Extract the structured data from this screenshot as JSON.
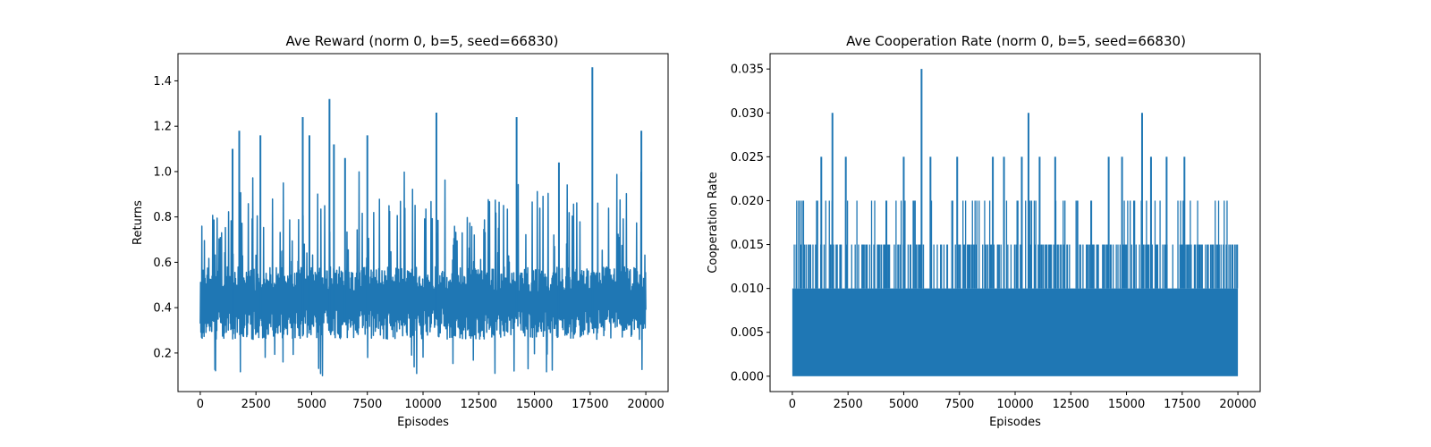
{
  "chart_data": [
    {
      "type": "line",
      "title": "Ave Reward (norm 0, b=5, seed=66830)",
      "xlabel": "Episodes",
      "ylabel": "Returns",
      "xlim": [
        -1000,
        21000
      ],
      "ylim": [
        0.03,
        1.52
      ],
      "xticks": [
        0,
        2500,
        5000,
        7500,
        10000,
        12500,
        15000,
        17500,
        20000
      ],
      "xtick_labels": [
        "0",
        "2500",
        "5000",
        "7500",
        "10000",
        "12500",
        "15000",
        "17500",
        "20000"
      ],
      "yticks": [
        0.2,
        0.4,
        0.6,
        0.8,
        1.0,
        1.2,
        1.4
      ],
      "ytick_labels": [
        "0.2",
        "0.4",
        "0.6",
        "0.8",
        "1.0",
        "1.2",
        "1.4"
      ],
      "grid": false,
      "color": "#1f77b4",
      "series": [
        {
          "x_range": [
            0,
            20000
          ],
          "baseline_band": [
            0.26,
            0.56
          ],
          "min_value": 0.1,
          "max_value": 1.46,
          "peaks": [
            {
              "x": 1450,
              "y": 1.1
            },
            {
              "x": 1750,
              "y": 1.18
            },
            {
              "x": 2700,
              "y": 1.16
            },
            {
              "x": 4600,
              "y": 1.24
            },
            {
              "x": 4900,
              "y": 1.16
            },
            {
              "x": 5800,
              "y": 1.32
            },
            {
              "x": 6000,
              "y": 1.12
            },
            {
              "x": 6500,
              "y": 1.06
            },
            {
              "x": 7500,
              "y": 1.16
            },
            {
              "x": 10600,
              "y": 1.26
            },
            {
              "x": 14200,
              "y": 1.24
            },
            {
              "x": 16100,
              "y": 1.04
            },
            {
              "x": 17600,
              "y": 1.46
            },
            {
              "x": 19800,
              "y": 1.18
            }
          ]
        }
      ]
    },
    {
      "type": "line",
      "title": "Ave Cooperation Rate (norm 0, b=5, seed=66830)",
      "xlabel": "Episodes",
      "ylabel": "Cooperation Rate",
      "xlim": [
        -1000,
        21000
      ],
      "ylim": [
        -0.00175,
        0.03675
      ],
      "xticks": [
        0,
        2500,
        5000,
        7500,
        10000,
        12500,
        15000,
        17500,
        20000
      ],
      "xtick_labels": [
        "0",
        "2500",
        "5000",
        "7500",
        "10000",
        "12500",
        "15000",
        "17500",
        "20000"
      ],
      "yticks": [
        0.0,
        0.005,
        0.01,
        0.015,
        0.02,
        0.025,
        0.03,
        0.035
      ],
      "ytick_labels": [
        "0.000",
        "0.005",
        "0.010",
        "0.015",
        "0.020",
        "0.025",
        "0.030",
        "0.035"
      ],
      "grid": false,
      "color": "#1f77b4",
      "series": [
        {
          "x_range": [
            0,
            20000
          ],
          "levels": [
            0.0,
            0.005,
            0.01,
            0.015,
            0.02,
            0.025,
            0.03,
            0.035
          ],
          "solid_band": [
            0.0,
            0.01
          ],
          "max_value": 0.035,
          "peaks": [
            {
              "x": 1300,
              "y": 0.025
            },
            {
              "x": 1800,
              "y": 0.03
            },
            {
              "x": 2400,
              "y": 0.025
            },
            {
              "x": 5000,
              "y": 0.025
            },
            {
              "x": 5800,
              "y": 0.035
            },
            {
              "x": 6200,
              "y": 0.025
            },
            {
              "x": 7400,
              "y": 0.025
            },
            {
              "x": 9000,
              "y": 0.025
            },
            {
              "x": 9500,
              "y": 0.025
            },
            {
              "x": 10300,
              "y": 0.025
            },
            {
              "x": 10600,
              "y": 0.03
            },
            {
              "x": 11100,
              "y": 0.025
            },
            {
              "x": 11800,
              "y": 0.025
            },
            {
              "x": 14200,
              "y": 0.025
            },
            {
              "x": 14800,
              "y": 0.025
            },
            {
              "x": 15700,
              "y": 0.03
            },
            {
              "x": 16100,
              "y": 0.025
            },
            {
              "x": 16800,
              "y": 0.025
            },
            {
              "x": 17600,
              "y": 0.025
            }
          ]
        }
      ]
    }
  ]
}
